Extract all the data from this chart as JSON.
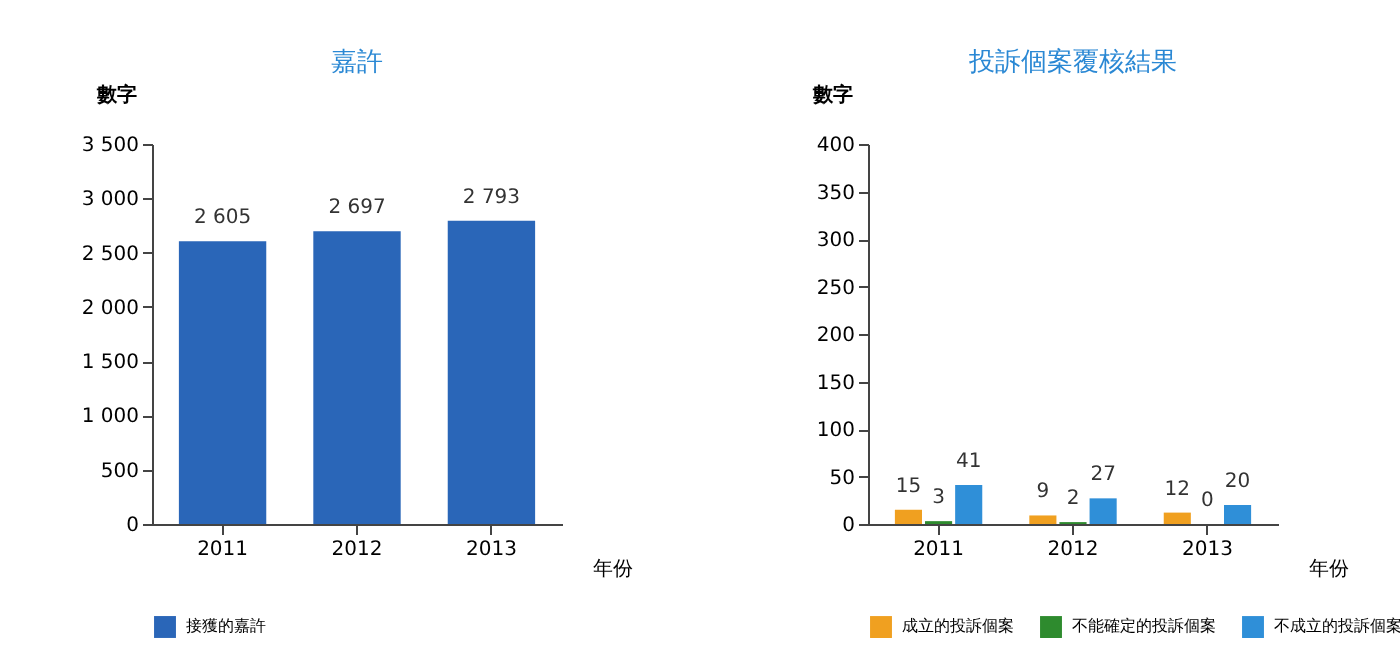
{
  "chart_data": [
    {
      "type": "bar",
      "title": "嘉許",
      "xlabel": "年份",
      "ylabel": "數字",
      "categories": [
        "2011",
        "2012",
        "2013"
      ],
      "series": [
        {
          "name": "接獲的嘉許",
          "color": "#2a66b8",
          "values": [
            2605,
            2697,
            2793
          ],
          "value_labels": [
            "2 605",
            "2 697",
            "2 793"
          ]
        }
      ],
      "ylim": [
        0,
        3500
      ],
      "yticks": [
        0,
        {
          "value": 500,
          "label": "500"
        },
        {
          "value": 1000,
          "label": "1 000"
        },
        {
          "value": 1500,
          "label": "1 500"
        },
        {
          "value": 2000,
          "label": "2 000"
        },
        {
          "value": 2500,
          "label": "2 500"
        },
        {
          "value": 3000,
          "label": "3 000"
        },
        {
          "value": 3500,
          "label": "3 500"
        }
      ],
      "legend": "bottom"
    },
    {
      "type": "bar",
      "title": "投訴個案覆核結果",
      "xlabel": "年份",
      "ylabel": "數字",
      "categories": [
        "2011",
        "2012",
        "2013"
      ],
      "series": [
        {
          "name": "成立的投訴個案",
          "color": "#f0a020",
          "values": [
            15,
            9,
            12
          ]
        },
        {
          "name": "不能確定的投訴個案",
          "color": "#2e8b2e",
          "values": [
            3,
            2,
            0
          ]
        },
        {
          "name": "不成立的投訴個案",
          "color": "#2f8fd8",
          "values": [
            41,
            27,
            20
          ]
        }
      ],
      "ylim": [
        0,
        400
      ],
      "yticks": [
        0,
        50,
        100,
        150,
        200,
        250,
        300,
        350,
        400
      ],
      "data_labels": true,
      "legend": "bottom"
    }
  ]
}
